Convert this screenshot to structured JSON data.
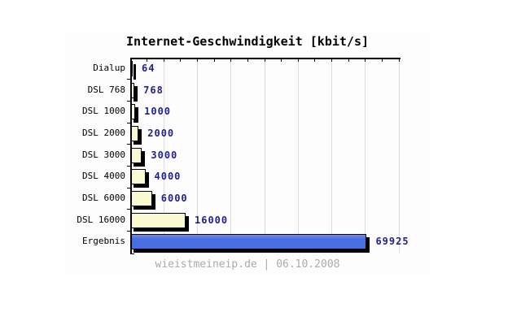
{
  "chart_data": {
    "type": "bar",
    "orientation": "horizontal",
    "title": "Internet-Geschwindigkeit [kbit/s]",
    "categories": [
      "Dialup",
      "DSL 768",
      "DSL 1000",
      "DSL 2000",
      "DSL 3000",
      "DSL 4000",
      "DSL 6000",
      "DSL 16000",
      "Ergebnis"
    ],
    "values": [
      64,
      768,
      1000,
      2000,
      3000,
      4000,
      6000,
      16000,
      69925
    ],
    "value_labels": [
      "64",
      "768",
      "1000",
      "2000",
      "3000",
      "4000",
      "6000",
      "16000",
      "69925"
    ],
    "xlabel": "",
    "ylabel": "",
    "xlim": [
      0,
      80000
    ],
    "minor_tick_step": 5000,
    "grid_step": 10000,
    "grid": true,
    "legend_position": "none",
    "colors": {
      "bar_fill_default": "#fafad2",
      "bar_fill_result": "#4a6fe3",
      "bar_border": "#000000",
      "bar_shadow": "#000000",
      "value_label": "#22228f",
      "category_label": "#000000",
      "gridline": "#dcdcdc",
      "axis": "#000000"
    },
    "result_category": "Ergebnis"
  },
  "footer": {
    "text": "wieistmeineip.de | 06.10.2008"
  }
}
